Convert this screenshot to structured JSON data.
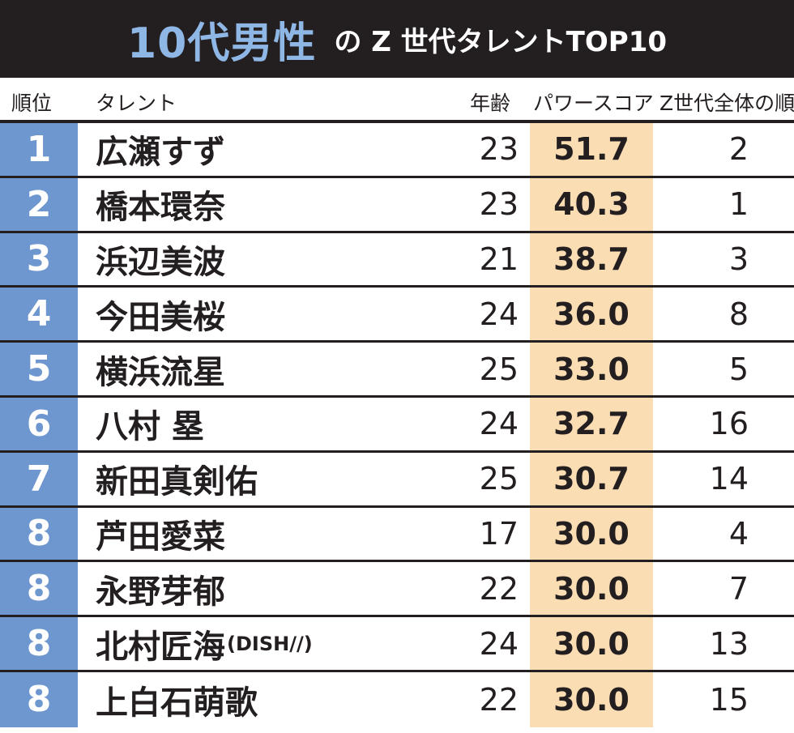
{
  "title": {
    "main": "10代男性",
    "sub": "の Z 世代タレントTOP10"
  },
  "header": {
    "rank": "順位",
    "name": "タレント",
    "age": "年齢",
    "power": "パワースコア",
    "overall": "Z世代全体の順位"
  },
  "rows": [
    {
      "rank": "1",
      "name": "広瀬すず",
      "note": "",
      "age": "23",
      "power": "51.7",
      "overall": "2"
    },
    {
      "rank": "2",
      "name": "橋本環奈",
      "note": "",
      "age": "23",
      "power": "40.3",
      "overall": "1"
    },
    {
      "rank": "3",
      "name": "浜辺美波",
      "note": "",
      "age": "21",
      "power": "38.7",
      "overall": "3"
    },
    {
      "rank": "4",
      "name": "今田美桜",
      "note": "",
      "age": "24",
      "power": "36.0",
      "overall": "8"
    },
    {
      "rank": "5",
      "name": "横浜流星",
      "note": "",
      "age": "25",
      "power": "33.0",
      "overall": "5"
    },
    {
      "rank": "6",
      "name": "八村 塁",
      "note": "",
      "age": "24",
      "power": "32.7",
      "overall": "16"
    },
    {
      "rank": "7",
      "name": "新田真剣佑",
      "note": "",
      "age": "25",
      "power": "30.7",
      "overall": "14"
    },
    {
      "rank": "8",
      "name": "芦田愛菜",
      "note": "",
      "age": "17",
      "power": "30.0",
      "overall": "4"
    },
    {
      "rank": "8",
      "name": "永野芽郁",
      "note": "",
      "age": "22",
      "power": "30.0",
      "overall": "7"
    },
    {
      "rank": "8",
      "name": "北村匠海",
      "note": "(DISH//)",
      "age": "24",
      "power": "30.0",
      "overall": "13"
    },
    {
      "rank": "8",
      "name": "上白石萌歌",
      "note": "",
      "age": "22",
      "power": "30.0",
      "overall": "15"
    }
  ]
}
